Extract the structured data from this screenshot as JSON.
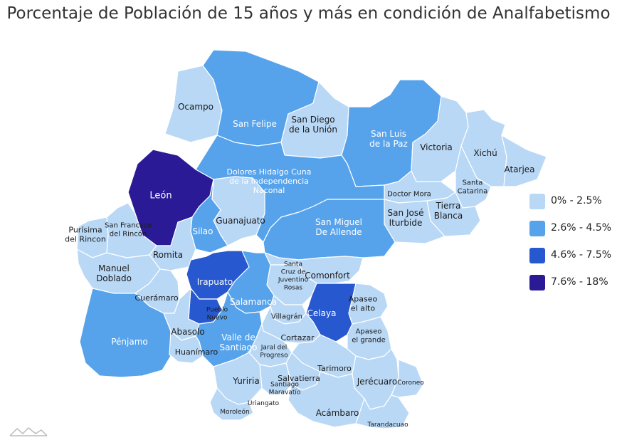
{
  "title": "Porcentaje de Población de 15 años y más en condición de Analfabetismo",
  "colors": {
    "c1": "#b9d8f6",
    "c2": "#56a3ec",
    "c3": "#2758cf",
    "c4": "#2a1a96",
    "border": "#ffffff",
    "label_dark": "#1a1a1a",
    "label_light": "#ffffff",
    "logo": "#bbbbbb"
  },
  "legend": [
    {
      "label": "0% - 2.5%",
      "color_key": "c1"
    },
    {
      "label": "2.6% - 4.5%",
      "color_key": "c2"
    },
    {
      "label": "4.6% - 7.5%",
      "color_key": "c3"
    },
    {
      "label": "7.6% - 18%",
      "color_key": "c4"
    }
  ],
  "municipios": [
    {
      "name": "Ocampo",
      "class": "c1"
    },
    {
      "name": "San Felipe",
      "class": "c2"
    },
    {
      "name": "San Diego de la Unión",
      "class": "c1"
    },
    {
      "name": "San Luis de la Paz",
      "class": "c2"
    },
    {
      "name": "Victoria",
      "class": "c1"
    },
    {
      "name": "Xichú",
      "class": "c1"
    },
    {
      "name": "Atarjea",
      "class": "c1"
    },
    {
      "name": "Santa Catarina",
      "class": "c1"
    },
    {
      "name": "Doctor Mora",
      "class": "c1"
    },
    {
      "name": "Tierra Blanca",
      "class": "c1"
    },
    {
      "name": "San José Iturbide",
      "class": "c1"
    },
    {
      "name": "León",
      "class": "c4"
    },
    {
      "name": "Dolores Hidalgo Cuna de la Independencia Naconal",
      "class": "c2"
    },
    {
      "name": "Guanajuato",
      "class": "c1"
    },
    {
      "name": "Silao",
      "class": "c2"
    },
    {
      "name": "San Miguel De Allende",
      "class": "c2"
    },
    {
      "name": "Purísima del Rincon",
      "class": "c1"
    },
    {
      "name": "San Francsco del Rincón",
      "class": "c1"
    },
    {
      "name": "Romita",
      "class": "c1"
    },
    {
      "name": "Manuel Doblado",
      "class": "c1"
    },
    {
      "name": "Irapuato",
      "class": "c3"
    },
    {
      "name": "Comonfort",
      "class": "c1"
    },
    {
      "name": "Santa Cruz de Juventino Rosas",
      "class": "c1"
    },
    {
      "name": "Salamanca",
      "class": "c2"
    },
    {
      "name": "Celaya",
      "class": "c3"
    },
    {
      "name": "Apaseo el alto",
      "class": "c1"
    },
    {
      "name": "Cuerámaro",
      "class": "c1"
    },
    {
      "name": "Pueblo Nuevo",
      "class": "c3"
    },
    {
      "name": "Villagrán",
      "class": "c1"
    },
    {
      "name": "Pénjamo",
      "class": "c2"
    },
    {
      "name": "Abasolo",
      "class": "c1"
    },
    {
      "name": "Valle de Santiago",
      "class": "c2"
    },
    {
      "name": "Cortazar",
      "class": "c1"
    },
    {
      "name": "Apaseo el grande",
      "class": "c1"
    },
    {
      "name": "Huanímaro",
      "class": "c1"
    },
    {
      "name": "Jaral del Progreso",
      "class": "c1"
    },
    {
      "name": "Tarimoro",
      "class": "c1"
    },
    {
      "name": "Yuriria",
      "class": "c1"
    },
    {
      "name": "Salvatierra",
      "class": "c1"
    },
    {
      "name": "Jerécuaro",
      "class": "c1"
    },
    {
      "name": "Coroneo",
      "class": "c1"
    },
    {
      "name": "Santiago Maravatío",
      "class": "c1"
    },
    {
      "name": "Uriangato",
      "class": "c1"
    },
    {
      "name": "Moroleón",
      "class": "c1"
    },
    {
      "name": "Acámbaro",
      "class": "c1"
    },
    {
      "name": "Tarandacuao",
      "class": "c1"
    }
  ]
}
